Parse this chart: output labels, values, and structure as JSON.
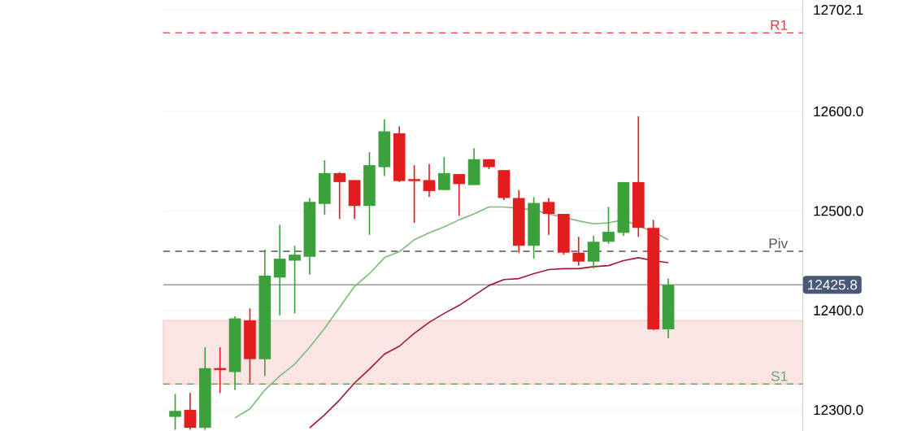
{
  "chart_data": {
    "type": "candlestick",
    "categories": [
      null,
      null,
      null,
      null,
      null,
      null,
      null,
      null,
      null,
      null,
      null,
      null,
      null,
      null,
      null,
      null,
      null,
      null,
      null,
      null,
      null,
      null,
      null,
      null,
      null,
      null,
      null,
      null,
      null,
      null,
      null,
      null,
      null,
      null
    ],
    "ohlc": [
      [
        12293,
        12316,
        12280,
        12299
      ],
      [
        12300,
        12317,
        12280,
        12282
      ],
      [
        12282,
        12363,
        12280,
        12342
      ],
      [
        12342,
        12363,
        12317,
        12340
      ],
      [
        12338,
        12394,
        12320,
        12392
      ],
      [
        12390,
        12402,
        12327,
        12351
      ],
      [
        12351,
        12461,
        12334,
        12435
      ],
      [
        12433,
        12486,
        12395,
        12452
      ],
      [
        12450,
        12465,
        12397,
        12456
      ],
      [
        12454,
        12513,
        12436,
        12509
      ],
      [
        12507,
        12551,
        12496,
        12538
      ],
      [
        12538,
        12539,
        12492,
        12529
      ],
      [
        12531,
        12531,
        12492,
        12505
      ],
      [
        12505,
        12559,
        12476,
        12546
      ],
      [
        12544,
        12592,
        12535,
        12580
      ],
      [
        12578,
        12585,
        12529,
        12530
      ],
      [
        12532,
        12546,
        12488,
        12530
      ],
      [
        12531,
        12547,
        12514,
        12520
      ],
      [
        12521,
        12554,
        12521,
        12538
      ],
      [
        12537,
        12537,
        12495,
        12527
      ],
      [
        12526,
        12563,
        12526,
        12552
      ],
      [
        12552,
        12552,
        12542,
        12544
      ],
      [
        12541,
        12541,
        12511,
        12513
      ],
      [
        12513,
        12521,
        12458,
        12465
      ],
      [
        12465,
        12514,
        12452,
        12508
      ],
      [
        12509,
        12513,
        12476,
        12497
      ],
      [
        12497,
        12497,
        12456,
        12458
      ],
      [
        12458,
        12474,
        12445,
        12449
      ],
      [
        12449,
        12475,
        12442,
        12469
      ],
      [
        12469,
        12504,
        12467,
        12479
      ],
      [
        12478,
        12529,
        12475,
        12529
      ],
      [
        12529,
        12595,
        12474,
        12483
      ],
      [
        12483,
        12491,
        12380,
        12381
      ],
      [
        12381,
        12432,
        12372,
        12425.8
      ]
    ],
    "colors": [
      "#3ba23b",
      "#e01e1e",
      "#3ba23b",
      "#e01e1e",
      "#3ba23b",
      "#e01e1e",
      "#3ba23b",
      "#3ba23b",
      "#3ba23b",
      "#3ba23b",
      "#3ba23b",
      "#e01e1e",
      "#e01e1e",
      "#3ba23b",
      "#3ba23b",
      "#e01e1e",
      "#e01e1e",
      "#e01e1e",
      "#3ba23b",
      "#e01e1e",
      "#3ba23b",
      "#e01e1e",
      "#e01e1e",
      "#e01e1e",
      "#3ba23b",
      "#e01e1e",
      "#e01e1e",
      "#e01e1e",
      "#3ba23b",
      "#3ba23b",
      "#3ba23b",
      "#e01e1e",
      "#e01e1e",
      "#3ba23b"
    ],
    "series": [
      {
        "type": "line",
        "color": "#7dbd79",
        "values": [
          null,
          null,
          null,
          null,
          12292,
          12301,
          12320,
          12334,
          12346,
          12363,
          12382,
          12403,
          12424,
          12437,
          12453,
          12459,
          12471,
          12478,
          12484,
          12491,
          12497,
          12504,
          12504,
          null,
          12501,
          12497,
          null,
          12490,
          12487,
          12488,
          12491,
          null,
          12479,
          12471
        ]
      },
      {
        "type": "line",
        "color": "#a3182c",
        "values": [
          null,
          null,
          null,
          null,
          null,
          null,
          null,
          null,
          null,
          12282,
          12295,
          12310,
          12327,
          12341,
          12356,
          12364,
          12377,
          12388,
          12397,
          12405,
          12415,
          12425,
          12431,
          12432,
          12437,
          12441,
          12442,
          12442,
          12444,
          12445,
          12450,
          12453,
          12450,
          12448
        ]
      }
    ],
    "ylim": [
      12278,
      12712
    ],
    "yticks": [
      {
        "value": 12300,
        "label": "12300.0"
      },
      {
        "value": 12400,
        "label": "12400.0"
      },
      {
        "value": 12500,
        "label": "12500.0"
      },
      {
        "value": 12600,
        "label": "12600.0"
      },
      {
        "value": 12702.1,
        "label": "12702.1"
      }
    ],
    "ref_lines": [
      {
        "axis": "y",
        "value": 12679,
        "label": "R1",
        "color": "#e03c3c",
        "line_style": "dashed"
      },
      {
        "axis": "y",
        "value": 12459.5,
        "label": "Piv",
        "color": "#555555",
        "line_style": "dashed"
      },
      {
        "axis": "y",
        "value": 12326,
        "label": "S1",
        "color": "#6aa86a",
        "line_style": "dashed"
      },
      {
        "axis": "y",
        "value": 12425.8,
        "label": "12425.8",
        "color": "#9a9a9a",
        "line_style": "solid"
      }
    ],
    "bands": [
      {
        "axis": "y",
        "from": 12326,
        "to": 12390,
        "color": "#fbe4e4"
      }
    ],
    "grid": "y",
    "tick_labels": "y"
  }
}
